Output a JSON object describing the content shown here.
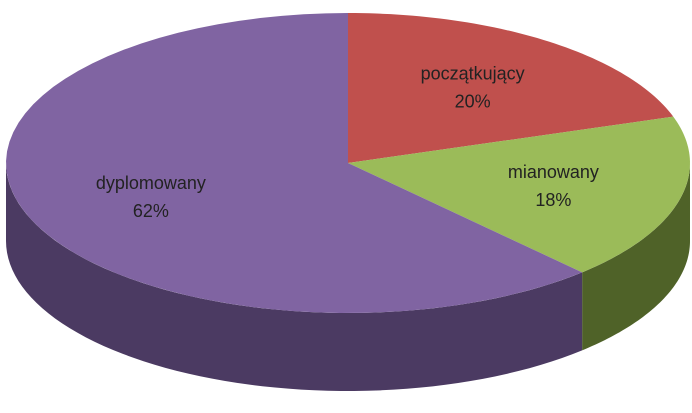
{
  "chart_data": {
    "type": "pie",
    "categories": [
      "początkujący",
      "mianowany",
      "dyplomowany"
    ],
    "values": [
      20,
      18,
      62
    ],
    "value_labels": [
      "20%",
      "18%",
      "62%"
    ],
    "colors": [
      "#c0504d",
      "#9bbb59",
      "#8064a2"
    ],
    "side_colors": [
      "#8c3836",
      "#4f6228",
      "#4b3a62"
    ]
  }
}
